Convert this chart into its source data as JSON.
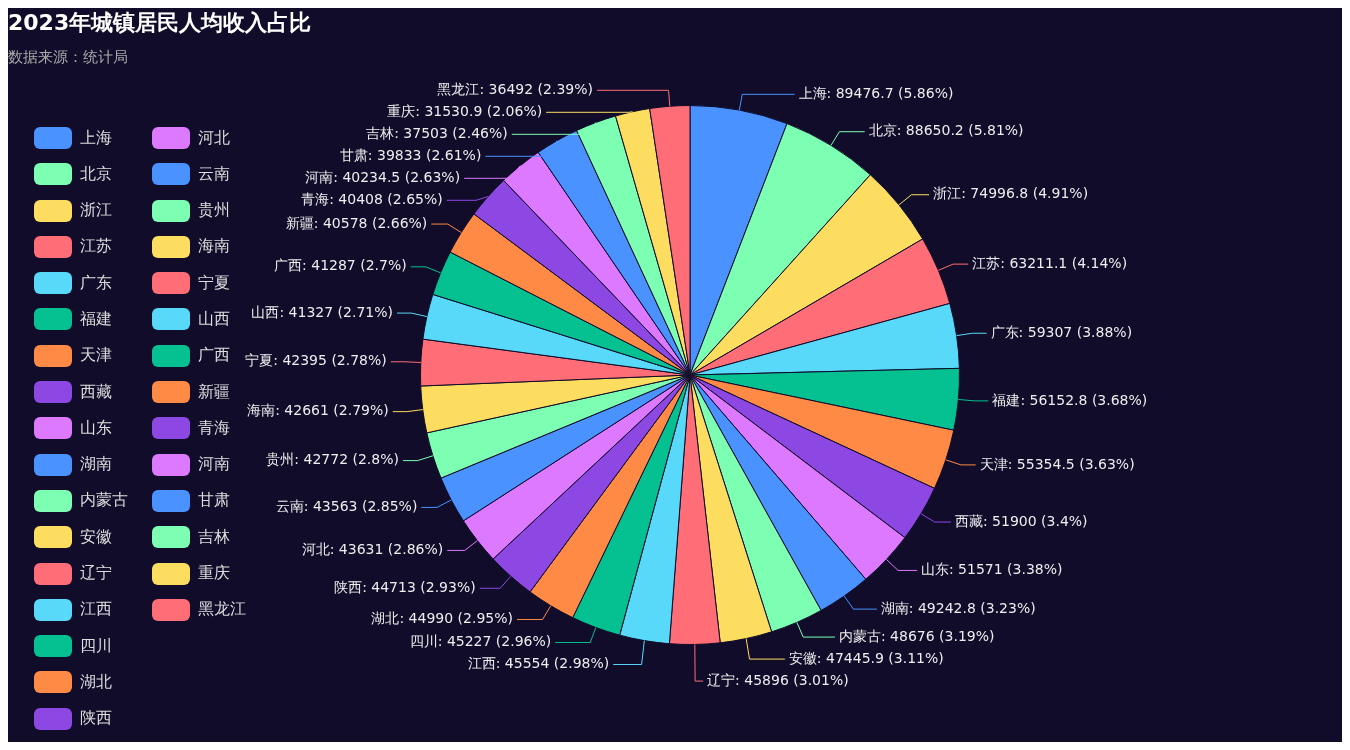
{
  "chart_data": {
    "type": "pie",
    "title": "2023年城镇居民人均收入占比",
    "subtitle": "数据来源：统计局",
    "legend": "left",
    "categories": [
      "上海",
      "北京",
      "浙江",
      "江苏",
      "广东",
      "福建",
      "天津",
      "西藏",
      "山东",
      "湖南",
      "内蒙古",
      "安徽",
      "辽宁",
      "江西",
      "四川",
      "湖北",
      "陕西",
      "河北",
      "云南",
      "贵州",
      "海南",
      "宁夏",
      "山西",
      "广西",
      "新疆",
      "青海",
      "河南",
      "甘肃",
      "吉林",
      "重庆",
      "黑龙江"
    ],
    "values": [
      89476.7,
      88650.2,
      74996.8,
      63211.1,
      59307,
      56152.8,
      55354.5,
      51900,
      51571,
      49242.8,
      48676,
      47445.9,
      45896,
      45554,
      45227,
      44990,
      44713,
      43631,
      43563,
      42772,
      42661,
      42395,
      41327,
      41287,
      40578,
      40408,
      40234.5,
      39833,
      37503,
      31530.9,
      36492
    ],
    "value_labels": [
      "上海: 89476.7 (5.86%)",
      "北京: 88650.2 (5.81%)",
      "浙江: 74996.8 (4.91%)",
      "江苏: 63211.1 (4.14%)",
      "广东: 59307 (3.88%)",
      "福建: 56152.8 (3.68%)",
      "天津: 55354.5 (3.63%)",
      "西藏: 51900 (3.4%)",
      "山东: 51571 (3.38%)",
      "湖南: 49242.8 (3.23%)",
      "内蒙古: 48676 (3.19%)",
      "安徽: 47445.9 (3.11%)",
      "辽宁: 45896 (3.01%)",
      "江西: 45554 (2.98%)",
      "四川: 45227 (2.96%)",
      "湖北: 44990 (2.95%)",
      "陕西: 44713 (2.93%)",
      "河北: 43631 (2.86%)",
      "云南: 43563 (2.85%)",
      "贵州: 42772 (2.8%)",
      "海南: 42661 (2.79%)",
      "宁夏: 42395 (2.78%)",
      "山西: 41327 (2.71%)",
      "广西: 41287 (2.7%)",
      "新疆: 40578 (2.66%)",
      "青海: 40408 (2.65%)",
      "河南: 40234.5 (2.63%)",
      "甘肃: 39833 (2.61%)",
      "吉林: 37503 (2.46%)",
      "重庆: 31530.9 (2.06%)",
      "黑龙江: 36492 (2.39%)"
    ],
    "colors": [
      "#4992ff",
      "#7cffb2",
      "#fddd60",
      "#ff6e76",
      "#58d9f9",
      "#05c091",
      "#ff8a45",
      "#8d48e3",
      "#dd79ff",
      "#4992ff",
      "#7cffb2",
      "#fddd60",
      "#ff6e76",
      "#58d9f9",
      "#05c091",
      "#ff8a45",
      "#8d48e3",
      "#dd79ff",
      "#4992ff",
      "#7cffb2",
      "#fddd60",
      "#ff6e76",
      "#58d9f9",
      "#05c091",
      "#ff8a45",
      "#8d48e3",
      "#dd79ff",
      "#4992ff",
      "#7cffb2",
      "#fddd60",
      "#ff6e76"
    ]
  }
}
